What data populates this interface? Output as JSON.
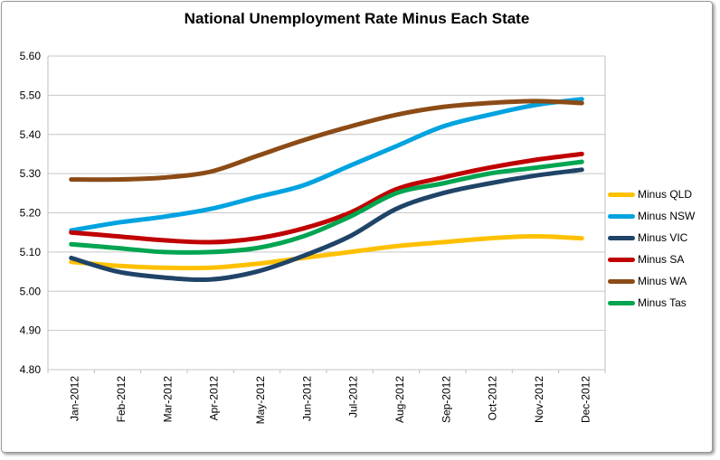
{
  "chart_data": {
    "type": "line",
    "title": "National Unemployment Rate Minus Each State",
    "categories": [
      "Jan-2012",
      "Feb-2012",
      "Mar-2012",
      "Apr-2012",
      "May-2012",
      "Jun-2012",
      "Jul-2012",
      "Aug-2012",
      "Sep-2012",
      "Oct-2012",
      "Nov-2012",
      "Dec-2012"
    ],
    "ylim": [
      4.8,
      5.6
    ],
    "ytick_step": 0.1,
    "ytick_decimals": 2,
    "grid": "horizontal",
    "legend_position": "right",
    "line_style": "smooth",
    "line_width": 5,
    "colors": {
      "grid": "#c6c6c6",
      "plot_border": "#bfbfbf",
      "axis_text": "#000000",
      "title_text": "#000000"
    },
    "series": [
      {
        "name": "Minus QLD",
        "color": "#FFC000",
        "values": [
          5.075,
          5.065,
          5.06,
          5.06,
          5.07,
          5.085,
          5.1,
          5.115,
          5.125,
          5.135,
          5.14,
          5.135
        ]
      },
      {
        "name": "Minus NSW",
        "color": "#00A3E0",
        "values": [
          5.155,
          5.175,
          5.19,
          5.21,
          5.24,
          5.27,
          5.32,
          5.37,
          5.42,
          5.45,
          5.475,
          5.49
        ]
      },
      {
        "name": "Minus VIC",
        "color": "#1F4467",
        "values": [
          5.085,
          5.05,
          5.035,
          5.03,
          5.05,
          5.09,
          5.14,
          5.21,
          5.25,
          5.275,
          5.295,
          5.31
        ]
      },
      {
        "name": "Minus SA",
        "color": "#C00000",
        "values": [
          5.15,
          5.14,
          5.13,
          5.125,
          5.135,
          5.16,
          5.2,
          5.26,
          5.29,
          5.315,
          5.335,
          5.35
        ]
      },
      {
        "name": "Minus WA",
        "color": "#8C4B16",
        "values": [
          5.285,
          5.285,
          5.29,
          5.305,
          5.345,
          5.385,
          5.42,
          5.45,
          5.47,
          5.48,
          5.485,
          5.48
        ]
      },
      {
        "name": "Minus Tas",
        "color": "#00A551",
        "values": [
          5.12,
          5.11,
          5.1,
          5.1,
          5.11,
          5.14,
          5.19,
          5.25,
          5.275,
          5.3,
          5.315,
          5.33
        ]
      }
    ]
  }
}
